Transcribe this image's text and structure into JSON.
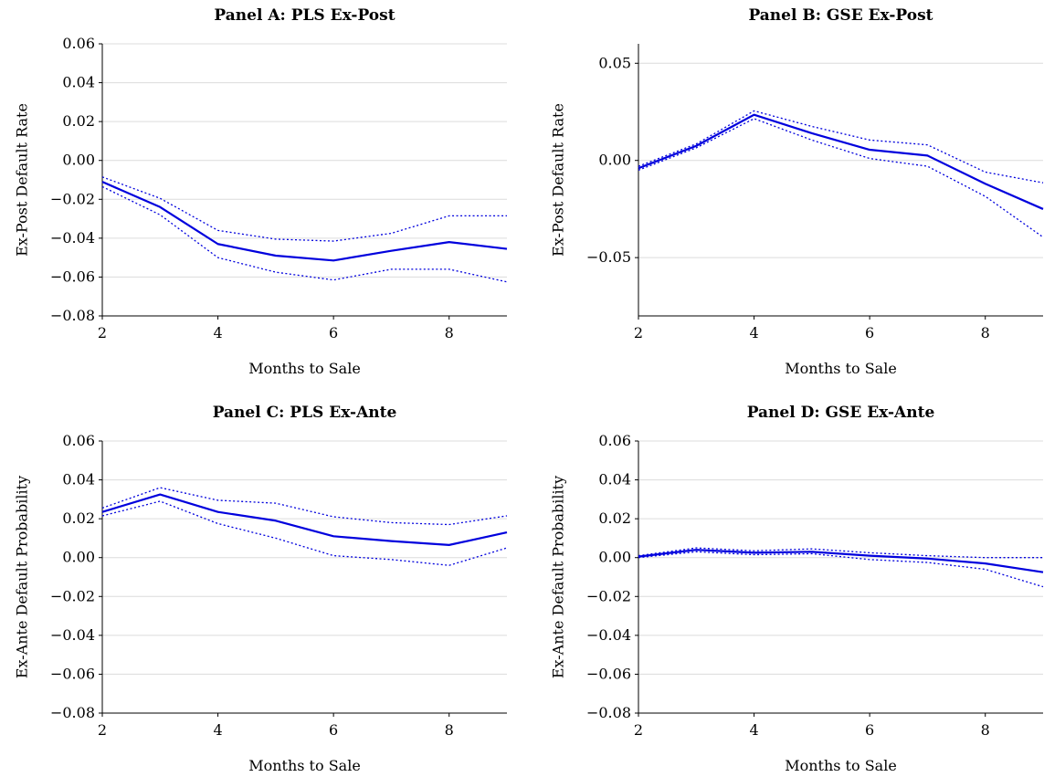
{
  "chart_data": [
    {
      "type": "line",
      "title": "Panel A: PLS Ex-Post",
      "xlabel": "Months to Sale",
      "ylabel": "Ex-Post Default Rate",
      "x": [
        2,
        3,
        4,
        5,
        6,
        7,
        8,
        9
      ],
      "xlim": [
        2,
        9
      ],
      "ylim": [
        -0.08,
        0.06
      ],
      "xticks": [
        2,
        4,
        6,
        8
      ],
      "xtick_labels": [
        "2",
        "4",
        "6",
        "8"
      ],
      "yticks": [
        -0.08,
        -0.06,
        -0.04,
        -0.02,
        0.0,
        0.02,
        0.04,
        0.06
      ],
      "ytick_labels": [
        "−0.08",
        "−0.06",
        "−0.04",
        "−0.02",
        "0.00",
        "0.02",
        "0.04",
        "0.06"
      ],
      "grid": true,
      "series": [
        {
          "role": "estimate",
          "values": [
            -0.011,
            -0.024,
            -0.043,
            -0.049,
            -0.0515,
            -0.0465,
            -0.042,
            -0.0455
          ]
        },
        {
          "role": "upper",
          "values": [
            -0.0085,
            -0.0195,
            -0.036,
            -0.0405,
            -0.0415,
            -0.0375,
            -0.0285,
            -0.0285
          ]
        },
        {
          "role": "lower",
          "values": [
            -0.0135,
            -0.028,
            -0.05,
            -0.0575,
            -0.0615,
            -0.056,
            -0.056,
            -0.0625
          ]
        }
      ]
    },
    {
      "type": "line",
      "title": "Panel B: GSE Ex-Post",
      "xlabel": "Months to Sale",
      "ylabel": "Ex-Post Default Rate",
      "x": [
        2,
        3,
        4,
        5,
        6,
        7,
        8,
        9
      ],
      "xlim": [
        2,
        9
      ],
      "ylim": [
        -0.08,
        0.06
      ],
      "xticks": [
        2,
        4,
        6,
        8
      ],
      "xtick_labels": [
        "2",
        "4",
        "6",
        "8"
      ],
      "yticks": [
        -0.05,
        0.0,
        0.05
      ],
      "ytick_labels": [
        "−0.05",
        "0.00",
        "0.05"
      ],
      "grid": true,
      "series": [
        {
          "role": "estimate",
          "values": [
            -0.004,
            0.0075,
            0.0235,
            0.014,
            0.0055,
            0.0025,
            -0.012,
            -0.025
          ]
        },
        {
          "role": "upper",
          "values": [
            -0.003,
            0.0085,
            0.0255,
            0.0175,
            0.0105,
            0.008,
            -0.006,
            -0.0115
          ]
        },
        {
          "role": "lower",
          "values": [
            -0.005,
            0.0065,
            0.0215,
            0.0105,
            0.001,
            -0.003,
            -0.0185,
            -0.0395
          ]
        }
      ]
    },
    {
      "type": "line",
      "title": "Panel C: PLS Ex-Ante",
      "xlabel": "Months to Sale",
      "ylabel": "Ex-Ante Default Probability",
      "x": [
        2,
        3,
        4,
        5,
        6,
        7,
        8,
        9
      ],
      "xlim": [
        2,
        9
      ],
      "ylim": [
        -0.08,
        0.06
      ],
      "xticks": [
        2,
        4,
        6,
        8
      ],
      "xtick_labels": [
        "2",
        "4",
        "6",
        "8"
      ],
      "yticks": [
        -0.08,
        -0.06,
        -0.04,
        -0.02,
        0.0,
        0.02,
        0.04,
        0.06
      ],
      "ytick_labels": [
        "−0.08",
        "−0.06",
        "−0.04",
        "−0.02",
        "0.00",
        "0.02",
        "0.04",
        "0.06"
      ],
      "grid": true,
      "series": [
        {
          "role": "estimate",
          "values": [
            0.0235,
            0.0325,
            0.0235,
            0.019,
            0.011,
            0.0085,
            0.0065,
            0.013
          ]
        },
        {
          "role": "upper",
          "values": [
            0.0255,
            0.036,
            0.0295,
            0.028,
            0.021,
            0.018,
            0.017,
            0.0215
          ]
        },
        {
          "role": "lower",
          "values": [
            0.0215,
            0.029,
            0.0175,
            0.01,
            0.001,
            -0.001,
            -0.004,
            0.005
          ]
        }
      ]
    },
    {
      "type": "line",
      "title": "Panel D: GSE Ex-Ante",
      "xlabel": "Months to Sale",
      "ylabel": "Ex-Ante Default Probability",
      "x": [
        2,
        3,
        4,
        5,
        6,
        7,
        8,
        9
      ],
      "xlim": [
        2,
        9
      ],
      "ylim": [
        -0.08,
        0.06
      ],
      "xticks": [
        2,
        4,
        6,
        8
      ],
      "xtick_labels": [
        "2",
        "4",
        "6",
        "8"
      ],
      "yticks": [
        -0.08,
        -0.06,
        -0.04,
        -0.02,
        0.0,
        0.02,
        0.04,
        0.06
      ],
      "ytick_labels": [
        "−0.08",
        "−0.06",
        "−0.04",
        "−0.02",
        "0.00",
        "0.02",
        "0.04",
        "0.06"
      ],
      "grid": true,
      "series": [
        {
          "role": "estimate",
          "values": [
            0.0005,
            0.004,
            0.0025,
            0.003,
            0.001,
            -0.0005,
            -0.003,
            -0.0075
          ]
        },
        {
          "role": "upper",
          "values": [
            0.001,
            0.005,
            0.0035,
            0.0045,
            0.0025,
            0.001,
            0.0,
            0.0
          ]
        },
        {
          "role": "lower",
          "values": [
            0.0,
            0.003,
            0.0015,
            0.002,
            -0.001,
            -0.0025,
            -0.006,
            -0.015
          ]
        }
      ]
    }
  ],
  "colors": {
    "line": "#0000dd",
    "grid": "#dcdcdc",
    "axis": "#000000"
  }
}
